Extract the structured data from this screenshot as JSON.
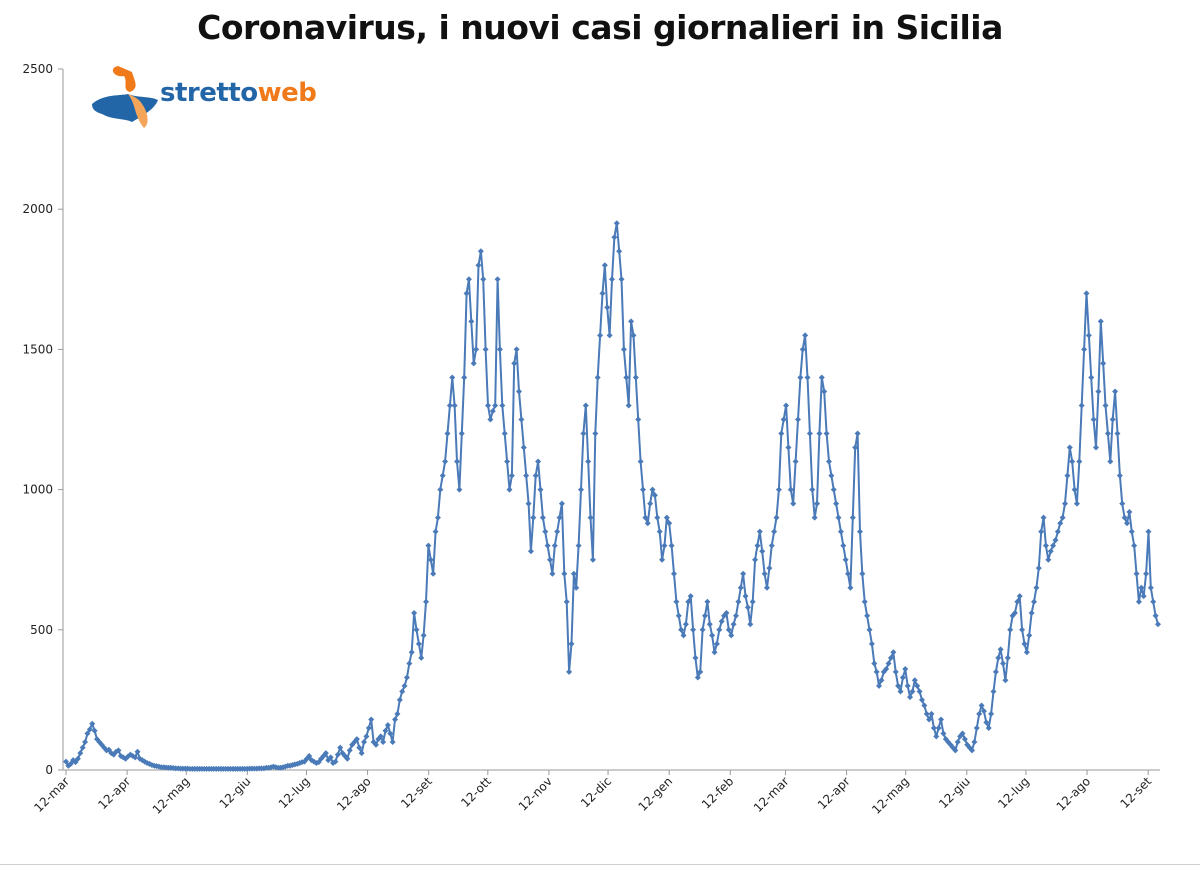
{
  "title": "Coronavirus, i nuovi casi giornalieri in Sicilia",
  "logo": {
    "part1": "stretto",
    "part2": "web"
  },
  "colors": {
    "series": "#4a7ab8",
    "axis": "#9a9a9a",
    "logo_blue": "#2266a8",
    "logo_orange": "#f07a1a"
  },
  "chart_data": {
    "type": "line",
    "title": "Coronavirus, i nuovi casi giornalieri in Sicilia",
    "xlabel": "",
    "ylabel": "",
    "ylim": [
      0,
      2500
    ],
    "yticks": [
      0,
      500,
      1000,
      1500,
      2000,
      2500
    ],
    "xticks": [
      "12-mar",
      "12-apr",
      "12-mag",
      "12-giu",
      "12-lug",
      "12-ago",
      "12-set",
      "12-ott",
      "12-nov",
      "12-dic",
      "12-gen",
      "12-feb",
      "12-mar",
      "12-apr",
      "12-mag",
      "12-giu",
      "12-lug",
      "12-ago",
      "12-set"
    ],
    "grid": false,
    "legend": "none",
    "markers": "diamond",
    "series": [
      {
        "start_date": "2020-03-12",
        "end_date": "2021-09-17",
        "values": [
          30,
          15,
          22,
          35,
          28,
          40,
          60,
          80,
          100,
          130,
          145,
          165,
          140,
          110,
          100,
          90,
          80,
          70,
          72,
          60,
          55,
          65,
          70,
          50,
          45,
          40,
          48,
          55,
          50,
          45,
          65,
          40,
          35,
          30,
          25,
          22,
          18,
          15,
          14,
          12,
          10,
          10,
          9,
          8,
          8,
          7,
          6,
          6,
          5,
          5,
          5,
          5,
          4,
          4,
          4,
          4,
          4,
          4,
          4,
          4,
          4,
          4,
          4,
          4,
          4,
          4,
          4,
          4,
          4,
          4,
          4,
          4,
          4,
          4,
          4,
          4,
          4,
          5,
          5,
          5,
          5,
          6,
          6,
          6,
          8,
          8,
          10,
          12,
          10,
          8,
          8,
          10,
          12,
          15,
          15,
          18,
          20,
          22,
          25,
          28,
          30,
          40,
          50,
          35,
          30,
          25,
          28,
          40,
          50,
          60,
          35,
          45,
          25,
          30,
          55,
          80,
          60,
          50,
          40,
          70,
          90,
          100,
          110,
          80,
          60,
          100,
          120,
          150,
          180,
          100,
          90,
          110,
          120,
          100,
          140,
          160,
          130,
          100,
          180,
          200,
          250,
          280,
          300,
          330,
          380,
          420,
          560,
          500,
          450,
          400,
          480,
          600,
          800,
          750,
          700,
          850,
          900,
          1000,
          1050,
          1100,
          1200,
          1300,
          1400,
          1300,
          1100,
          1000,
          1200,
          1400,
          1700,
          1750,
          1600,
          1450,
          1500,
          1800,
          1850,
          1750,
          1500,
          1300,
          1250,
          1280,
          1300,
          1750,
          1500,
          1300,
          1200,
          1100,
          1000,
          1050,
          1450,
          1500,
          1350,
          1250,
          1150,
          1050,
          950,
          780,
          900,
          1050,
          1100,
          1000,
          900,
          850,
          800,
          750,
          700,
          800,
          850,
          900,
          950,
          700,
          600,
          350,
          450,
          700,
          650,
          800,
          1000,
          1200,
          1300,
          1100,
          900,
          750,
          1200,
          1400,
          1550,
          1700,
          1800,
          1650,
          1550,
          1750,
          1900,
          1950,
          1850,
          1750,
          1500,
          1400,
          1300,
          1600,
          1550,
          1400,
          1250,
          1100,
          1000,
          900,
          880,
          950,
          1000,
          980,
          900,
          850,
          750,
          800,
          900,
          880,
          800,
          700,
          600,
          550,
          500,
          480,
          520,
          600,
          620,
          500,
          400,
          330,
          350,
          500,
          550,
          600,
          520,
          480,
          420,
          450,
          500,
          530,
          550,
          560,
          500,
          480,
          520,
          550,
          600,
          650,
          700,
          620,
          580,
          520,
          600,
          750,
          800,
          850,
          780,
          700,
          650,
          720,
          800,
          850,
          900,
          1000,
          1200,
          1250,
          1300,
          1150,
          1000,
          950,
          1100,
          1250,
          1400,
          1500,
          1550,
          1400,
          1200,
          1000,
          900,
          950,
          1200,
          1400,
          1350,
          1200,
          1100,
          1050,
          1000,
          950,
          900,
          850,
          800,
          750,
          700,
          650,
          900,
          1150,
          1200,
          850,
          700,
          600,
          550,
          500,
          450,
          380,
          350,
          300,
          320,
          350,
          360,
          380,
          400,
          420,
          350,
          300,
          280,
          330,
          360,
          300,
          260,
          280,
          320,
          300,
          280,
          250,
          230,
          200,
          180,
          200,
          150,
          120,
          150,
          180,
          130,
          110,
          100,
          90,
          80,
          70,
          100,
          120,
          130,
          110,
          90,
          80,
          70,
          100,
          150,
          200,
          230,
          210,
          170,
          150,
          200,
          280,
          350,
          400,
          430,
          380,
          320,
          400,
          500,
          550,
          560,
          600,
          620,
          500,
          450,
          420,
          480,
          560,
          600,
          650,
          720,
          850,
          900,
          800,
          750,
          780,
          800,
          820,
          850,
          880,
          900,
          950,
          1050,
          1150,
          1100,
          1000,
          950,
          1100,
          1300,
          1500,
          1700,
          1550,
          1400,
          1250,
          1150,
          1350,
          1600,
          1450,
          1300,
          1200,
          1100,
          1250,
          1350,
          1200,
          1050,
          950,
          900,
          880,
          920,
          850,
          800,
          700,
          600,
          650,
          620,
          700,
          850,
          650,
          600,
          550,
          520
        ]
      }
    ]
  }
}
